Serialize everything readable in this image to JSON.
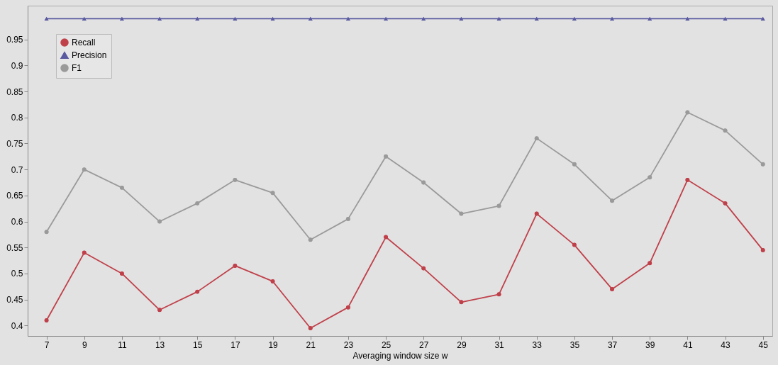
{
  "chart_data": {
    "type": "line",
    "xlabel": "Averaging window size w",
    "x": [
      7,
      9,
      11,
      13,
      15,
      17,
      19,
      21,
      23,
      25,
      27,
      29,
      31,
      33,
      35,
      37,
      39,
      41,
      43,
      45
    ],
    "series": [
      {
        "name": "Recall",
        "color": "#c0404a",
        "marker": "circle",
        "values": [
          0.41,
          0.54,
          0.5,
          0.43,
          0.465,
          0.515,
          0.485,
          0.395,
          0.435,
          0.57,
          0.51,
          0.445,
          0.46,
          0.615,
          0.555,
          0.47,
          0.52,
          0.68,
          0.635,
          0.545
        ]
      },
      {
        "name": "Precision",
        "color": "#5a5aa0",
        "marker": "triangle",
        "values": [
          0.99,
          0.99,
          0.99,
          0.99,
          0.99,
          0.99,
          0.99,
          0.99,
          0.99,
          0.99,
          0.99,
          0.99,
          0.99,
          0.99,
          0.99,
          0.99,
          0.99,
          0.99,
          0.99,
          0.99
        ]
      },
      {
        "name": "F1",
        "color": "#9a9a9a",
        "marker": "circle",
        "values": [
          0.58,
          0.7,
          0.665,
          0.6,
          0.635,
          0.68,
          0.655,
          0.565,
          0.605,
          0.725,
          0.675,
          0.615,
          0.63,
          0.76,
          0.71,
          0.64,
          0.685,
          0.81,
          0.775,
          0.71
        ]
      }
    ],
    "xlim": [
      6,
      45.5
    ],
    "ylim": [
      0.38,
      1.015
    ],
    "xticks": [
      7,
      9,
      11,
      13,
      15,
      17,
      19,
      21,
      23,
      25,
      27,
      29,
      31,
      33,
      35,
      37,
      39,
      41,
      43,
      45
    ],
    "yticks": [
      0.4,
      0.45,
      0.5,
      0.55,
      0.6,
      0.65,
      0.7,
      0.75,
      0.8,
      0.85,
      0.9,
      0.95
    ],
    "legend": "top left",
    "grid": false,
    "line_style": "solid"
  }
}
